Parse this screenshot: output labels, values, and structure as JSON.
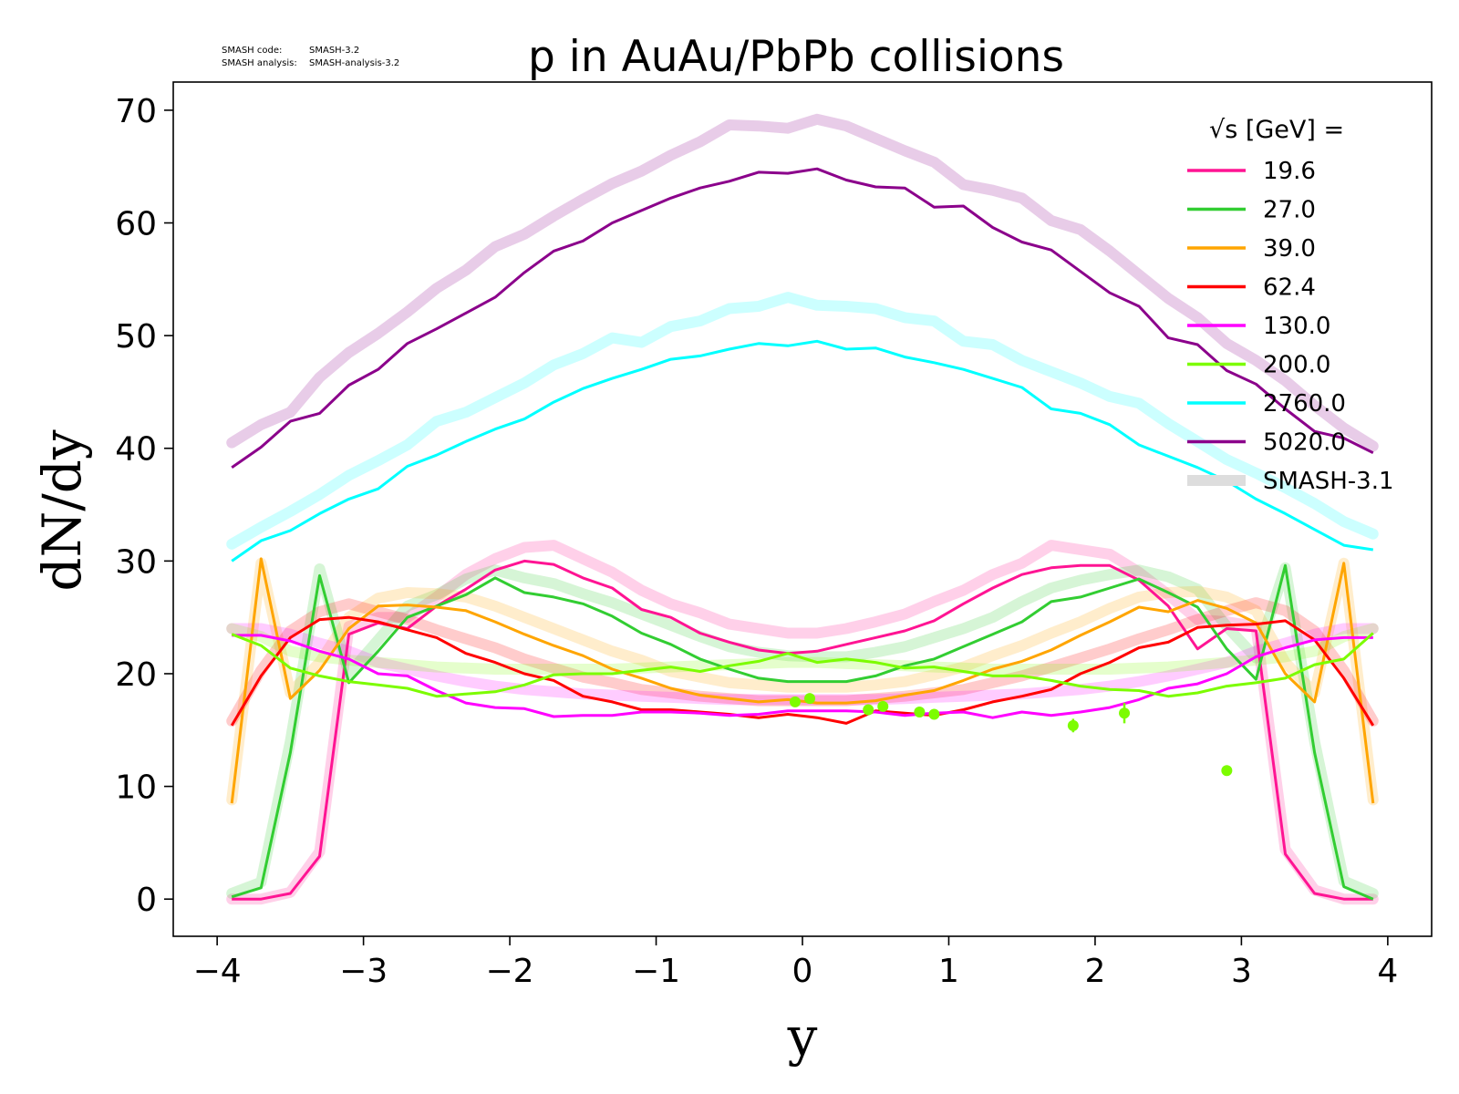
{
  "meta": {
    "code_label": "SMASH code:",
    "code_value": "SMASH-3.2",
    "analysis_label": "SMASH analysis:",
    "analysis_value": "SMASH-analysis-3.2"
  },
  "chart_data": {
    "type": "line",
    "title": "p in AuAu/PbPb collisions",
    "xlabel": "y",
    "ylabel": "dN/dy",
    "xlim": [
      -4.3,
      4.3
    ],
    "ylim": [
      -3.3,
      72.5
    ],
    "xticks": [
      -4,
      -3,
      -2,
      -1,
      0,
      1,
      2,
      3,
      4
    ],
    "yticks": [
      0,
      10,
      20,
      30,
      40,
      50,
      60,
      70
    ],
    "grid": false,
    "legend": {
      "placement": "top-right",
      "title": "√s  [GeV] =",
      "reference_label": "SMASH-3.1"
    },
    "x": [
      -3.9,
      -3.7,
      -3.5,
      -3.3,
      -3.1,
      -2.9,
      -2.7,
      -2.5,
      -2.3,
      -2.1,
      -1.9,
      -1.7,
      -1.5,
      -1.3,
      -1.1,
      -0.9,
      -0.7,
      -0.5,
      -0.3,
      -0.1,
      0.1,
      0.3,
      0.5,
      0.7,
      0.9,
      1.1,
      1.3,
      1.5,
      1.7,
      1.9,
      2.1,
      2.3,
      2.5,
      2.7,
      2.9,
      3.1,
      3.3,
      3.5,
      3.7,
      3.9
    ],
    "series": [
      {
        "name": "19.6",
        "color": "#ff1493",
        "values": [
          0.0,
          0.0,
          0.5,
          3.8,
          23.5,
          24.5,
          24.0,
          26.0,
          27.5,
          29.2,
          30.0,
          29.7,
          28.5,
          27.6,
          25.7,
          25.0,
          23.6,
          22.8,
          22.1,
          21.8,
          22.0,
          22.6,
          23.2,
          23.8,
          24.7,
          26.2,
          27.6,
          28.8,
          29.4,
          29.6,
          29.6,
          28.3,
          26.0,
          22.2,
          24.0,
          23.8,
          4.0,
          0.5,
          0.0,
          0.0
        ],
        "ref": [
          0.0,
          0.0,
          0.6,
          4.2,
          24.2,
          25.0,
          25.0,
          26.8,
          28.8,
          30.2,
          31.2,
          31.4,
          30.2,
          29.0,
          27.4,
          26.2,
          25.4,
          24.4,
          24.0,
          23.6,
          23.6,
          24.0,
          24.6,
          25.3,
          26.4,
          27.4,
          28.8,
          29.8,
          31.4,
          31.0,
          30.6,
          29.0,
          27.0,
          24.8,
          24.6,
          24.2,
          4.4,
          0.8,
          0.0,
          0.0
        ]
      },
      {
        "name": "27.0",
        "color": "#32cd32",
        "values": [
          0.2,
          1.0,
          13.0,
          28.7,
          19.2,
          22.0,
          25.0,
          26.0,
          27.0,
          28.5,
          27.2,
          26.8,
          26.2,
          25.1,
          23.6,
          22.6,
          21.3,
          20.4,
          19.6,
          19.3,
          19.3,
          19.3,
          19.8,
          20.7,
          21.3,
          22.4,
          23.5,
          24.6,
          26.4,
          26.8,
          27.6,
          28.4,
          27.2,
          25.9,
          22.2,
          19.5,
          29.6,
          13.0,
          1.1,
          0.0
        ],
        "ref": [
          0.5,
          1.5,
          14.0,
          29.3,
          20.0,
          23.0,
          26.0,
          27.0,
          28.4,
          29.2,
          28.5,
          28.0,
          27.1,
          26.3,
          25.3,
          24.3,
          23.3,
          22.4,
          21.9,
          21.6,
          21.5,
          21.5,
          21.9,
          22.4,
          23.2,
          24.0,
          25.0,
          26.4,
          27.6,
          28.3,
          28.8,
          29.2,
          28.6,
          27.5,
          24.2,
          21.4,
          29.4,
          14.0,
          1.6,
          0.5
        ]
      },
      {
        "name": "39.0",
        "color": "#ffa500",
        "values": [
          8.5,
          30.2,
          17.8,
          20.3,
          24.0,
          26.0,
          26.1,
          25.9,
          25.6,
          24.6,
          23.5,
          22.5,
          21.6,
          20.4,
          19.6,
          18.7,
          18.1,
          17.8,
          17.5,
          17.7,
          17.4,
          17.4,
          17.6,
          18.1,
          18.5,
          19.4,
          20.4,
          21.1,
          22.1,
          23.4,
          24.6,
          25.9,
          25.5,
          26.5,
          25.8,
          24.5,
          20.0,
          17.5,
          29.8,
          8.5
        ],
        "ref": [
          8.8,
          29.8,
          18.3,
          21.0,
          25.0,
          26.7,
          27.2,
          27.1,
          26.8,
          26.0,
          25.0,
          24.0,
          23.0,
          22.0,
          21.2,
          20.2,
          19.7,
          19.2,
          19.0,
          18.8,
          18.8,
          18.8,
          19.0,
          19.3,
          19.9,
          20.6,
          21.6,
          22.5,
          23.6,
          24.6,
          25.8,
          26.8,
          27.2,
          27.3,
          26.8,
          25.6,
          21.0,
          18.3,
          29.8,
          8.8
        ]
      },
      {
        "name": "62.4",
        "color": "#ff0000",
        "values": [
          15.4,
          19.8,
          23.2,
          24.8,
          25.0,
          24.6,
          23.9,
          23.2,
          21.8,
          21.0,
          20.0,
          19.4,
          18.0,
          17.5,
          16.8,
          16.8,
          16.6,
          16.4,
          16.1,
          16.4,
          16.1,
          15.6,
          16.7,
          16.5,
          16.3,
          16.8,
          17.5,
          18.0,
          18.6,
          20.0,
          21.0,
          22.3,
          22.8,
          24.1,
          24.3,
          24.4,
          24.7,
          23.0,
          19.6,
          15.4
        ],
        "ref": [
          15.8,
          20.3,
          23.8,
          25.5,
          26.2,
          25.5,
          24.8,
          23.9,
          23.1,
          22.3,
          21.3,
          20.5,
          19.7,
          19.2,
          18.6,
          18.3,
          18.0,
          17.8,
          17.6,
          17.6,
          17.6,
          17.6,
          17.8,
          18.0,
          18.3,
          18.6,
          19.2,
          19.8,
          20.6,
          21.4,
          22.2,
          23.1,
          23.9,
          24.8,
          25.6,
          26.3,
          25.6,
          23.8,
          20.3,
          15.8
        ]
      },
      {
        "name": "130.0",
        "color": "#ff00ff",
        "values": [
          23.4,
          23.4,
          22.9,
          22.0,
          21.3,
          20.0,
          19.8,
          18.5,
          17.4,
          17.0,
          16.9,
          16.2,
          16.3,
          16.3,
          16.6,
          16.6,
          16.5,
          16.3,
          16.4,
          16.7,
          16.7,
          16.7,
          16.6,
          16.3,
          16.5,
          16.6,
          16.1,
          16.6,
          16.3,
          16.6,
          17.0,
          17.7,
          18.7,
          19.1,
          20.0,
          21.5,
          22.3,
          23.0,
          23.2,
          23.2
        ],
        "ref": [
          24.0,
          24.0,
          23.5,
          22.7,
          22.0,
          21.0,
          20.4,
          19.8,
          19.3,
          18.9,
          18.6,
          18.4,
          18.2,
          18.1,
          18.0,
          17.9,
          17.8,
          17.7,
          17.7,
          17.7,
          17.7,
          17.7,
          17.7,
          17.8,
          17.9,
          18.0,
          18.1,
          18.2,
          18.4,
          18.6,
          18.9,
          19.3,
          19.8,
          20.4,
          21.0,
          22.0,
          22.7,
          23.5,
          24.0,
          24.0
        ]
      },
      {
        "name": "200.0",
        "color": "#7cfc00",
        "values": [
          23.5,
          22.5,
          20.5,
          19.8,
          19.3,
          19.0,
          18.7,
          18.0,
          18.2,
          18.4,
          19.0,
          19.9,
          20.0,
          20.0,
          20.3,
          20.6,
          20.2,
          20.7,
          21.1,
          21.8,
          21.0,
          21.3,
          21.0,
          20.5,
          20.6,
          20.2,
          19.8,
          19.8,
          19.4,
          18.9,
          18.6,
          18.5,
          18.0,
          18.3,
          18.9,
          19.2,
          19.6,
          20.8,
          21.3,
          23.6
        ],
        "ref": [
          24.0,
          23.3,
          22.0,
          21.5,
          21.2,
          21.0,
          20.8,
          20.6,
          20.5,
          20.4,
          20.4,
          20.4,
          20.4,
          20.4,
          20.5,
          20.6,
          20.7,
          20.8,
          20.9,
          21.0,
          21.0,
          20.9,
          20.8,
          20.7,
          20.6,
          20.5,
          20.4,
          20.4,
          20.4,
          20.4,
          20.4,
          20.5,
          20.6,
          20.8,
          21.0,
          21.2,
          21.5,
          22.0,
          23.3,
          24.0
        ]
      },
      {
        "name": "2760.0",
        "color": "#00ffff",
        "values": [
          30.0,
          31.8,
          32.7,
          34.2,
          35.5,
          36.4,
          38.4,
          39.4,
          40.6,
          41.7,
          42.6,
          44.1,
          45.3,
          46.2,
          47.0,
          47.9,
          48.2,
          48.8,
          49.3,
          49.1,
          49.5,
          48.8,
          48.9,
          48.1,
          47.6,
          47.0,
          46.2,
          45.4,
          43.5,
          43.1,
          42.1,
          40.3,
          39.3,
          38.3,
          37.1,
          35.5,
          34.2,
          32.8,
          31.4,
          31.0
        ],
        "ref": [
          31.5,
          33.0,
          34.4,
          35.9,
          37.6,
          38.9,
          40.3,
          42.4,
          43.2,
          44.5,
          45.8,
          47.4,
          48.4,
          49.8,
          49.4,
          50.8,
          51.3,
          52.4,
          52.6,
          53.4,
          52.7,
          52.6,
          52.4,
          51.6,
          51.3,
          49.5,
          49.2,
          47.8,
          46.8,
          45.8,
          44.6,
          44.0,
          42.2,
          40.6,
          39.0,
          37.8,
          36.5,
          35.1,
          33.5,
          32.4
        ]
      },
      {
        "name": "5020.0",
        "color": "#8b008b",
        "values": [
          38.3,
          40.1,
          42.4,
          43.1,
          45.6,
          47.0,
          49.3,
          50.6,
          52.0,
          53.4,
          55.6,
          57.5,
          58.4,
          60.0,
          61.1,
          62.2,
          63.1,
          63.7,
          64.5,
          64.4,
          64.8,
          63.8,
          63.2,
          63.1,
          61.4,
          61.5,
          59.6,
          58.3,
          57.6,
          55.7,
          53.8,
          52.6,
          49.8,
          49.2,
          46.9,
          45.7,
          43.5,
          41.5,
          40.9,
          39.6
        ],
        "ref": [
          40.5,
          42.1,
          43.2,
          46.3,
          48.5,
          50.2,
          52.1,
          54.2,
          55.8,
          57.9,
          59.0,
          60.6,
          62.1,
          63.5,
          64.6,
          66.0,
          67.2,
          68.7,
          68.6,
          68.4,
          69.2,
          68.6,
          67.5,
          66.4,
          65.4,
          63.4,
          62.9,
          62.2,
          60.2,
          59.4,
          57.5,
          55.4,
          53.3,
          51.6,
          49.3,
          47.8,
          46.0,
          43.8,
          41.8,
          40.2
        ]
      }
    ],
    "ref_color": "#dddddd",
    "data_points": {
      "series": "200.0",
      "color": "#7cfc00",
      "x": [
        -0.05,
        0.05,
        0.45,
        0.55,
        0.8,
        0.9,
        1.85,
        2.2,
        2.9
      ],
      "y": [
        17.5,
        17.8,
        16.8,
        17.1,
        16.6,
        16.4,
        15.4,
        16.5,
        11.4
      ],
      "err": [
        0.3,
        0.3,
        0.3,
        0.3,
        0.3,
        0.3,
        0.6,
        0.9,
        0.3
      ]
    }
  }
}
